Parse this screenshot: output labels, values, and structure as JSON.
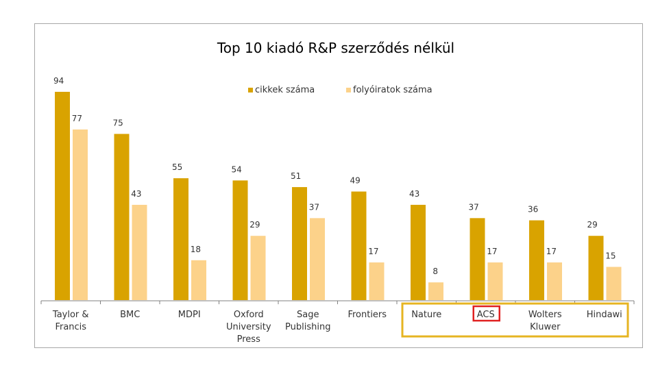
{
  "chart_data": {
    "type": "bar",
    "title": "Top 10 kiadó R&P szerződés nélkül",
    "xlabel": "",
    "ylabel": "",
    "ylim": [
      0,
      94
    ],
    "legend_position": "top",
    "categories": [
      "Taylor & Francis",
      "BMC",
      "MDPI",
      "Oxford University Press",
      "Sage Publishing",
      "Frontiers",
      "Nature",
      "ACS",
      "Wolters Kluwer",
      "Hindawi"
    ],
    "series": [
      {
        "name": "cikkek száma",
        "color": "#d9a300",
        "values": [
          94,
          75,
          55,
          54,
          51,
          49,
          43,
          37,
          36,
          29
        ]
      },
      {
        "name": "folyóiratok száma",
        "color": "#fcd28a",
        "values": [
          77,
          43,
          18,
          29,
          37,
          17,
          8,
          17,
          17,
          15
        ]
      }
    ],
    "highlights": {
      "group_box": {
        "color": "#e6b422",
        "categories": [
          "Nature",
          "ACS",
          "Wolters Kluwer",
          "Hindawi"
        ]
      },
      "label_box": {
        "color": "#e02020",
        "categories": [
          "ACS"
        ]
      }
    }
  }
}
